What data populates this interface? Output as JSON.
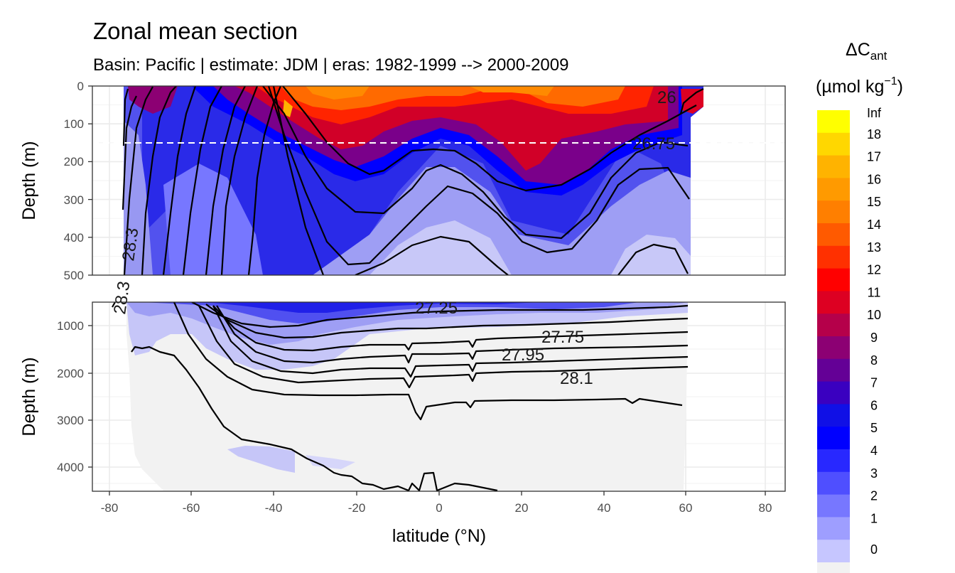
{
  "chart_data": {
    "type": "heatmap",
    "title": "Zonal mean section",
    "subtitle": "Basin: Pacific | estimate: JDM  | eras: 1982-1999 --> 2000-2009",
    "xlabel": "latitude (°N)",
    "ylabel_top": "Depth (m)",
    "ylabel_bottom": "Depth (m)",
    "xlim": [
      -85,
      85
    ],
    "x_ticks": [
      "-80",
      "-60",
      "-40",
      "-20",
      "0",
      "20",
      "40",
      "60",
      "80"
    ],
    "x_tick_values": [
      -80,
      -60,
      -40,
      -20,
      0,
      20,
      40,
      60,
      80
    ],
    "top_panel": {
      "ylim": [
        0,
        500
      ],
      "y_ticks": [
        "0",
        "100",
        "200",
        "300",
        "400",
        "500"
      ],
      "y_tick_values": [
        0,
        100,
        200,
        300,
        400,
        500
      ],
      "reference_depth": 150
    },
    "bottom_panel": {
      "ylim": [
        500,
        4500
      ],
      "y_ticks": [
        "1000",
        "2000",
        "3000",
        "4000"
      ],
      "y_tick_values": [
        1000,
        2000,
        3000,
        4000
      ]
    },
    "legend": {
      "title_main": "ΔC",
      "title_sub": "ant",
      "unit": "(µmol kg",
      "unit_exp": "−1",
      "unit_close": ")",
      "labels": [
        "Inf",
        "18",
        "17",
        "16",
        "15",
        "14",
        "13",
        "12",
        "11",
        "10",
        "9",
        "8",
        "7",
        "6",
        "5",
        "4",
        "3",
        "2",
        "1",
        "0"
      ],
      "colors": [
        "#ffff00",
        "#ffd700",
        "#ffb300",
        "#ff9a00",
        "#ff7f00",
        "#ff5a00",
        "#ff3000",
        "#ff0000",
        "#dd0022",
        "#b5004a",
        "#8c0073",
        "#640096",
        "#3a00c0",
        "#1010e6",
        "#0000ff",
        "#2828ff",
        "#4f4fff",
        "#7777ff",
        "#9e9eff",
        "#c6c6ff",
        "#f2f2f2"
      ]
    },
    "contour_labels": [
      "26",
      "26.75",
      "27.25",
      "27.75",
      "27.95",
      "28.1",
      "28.3",
      "28.3"
    ]
  }
}
